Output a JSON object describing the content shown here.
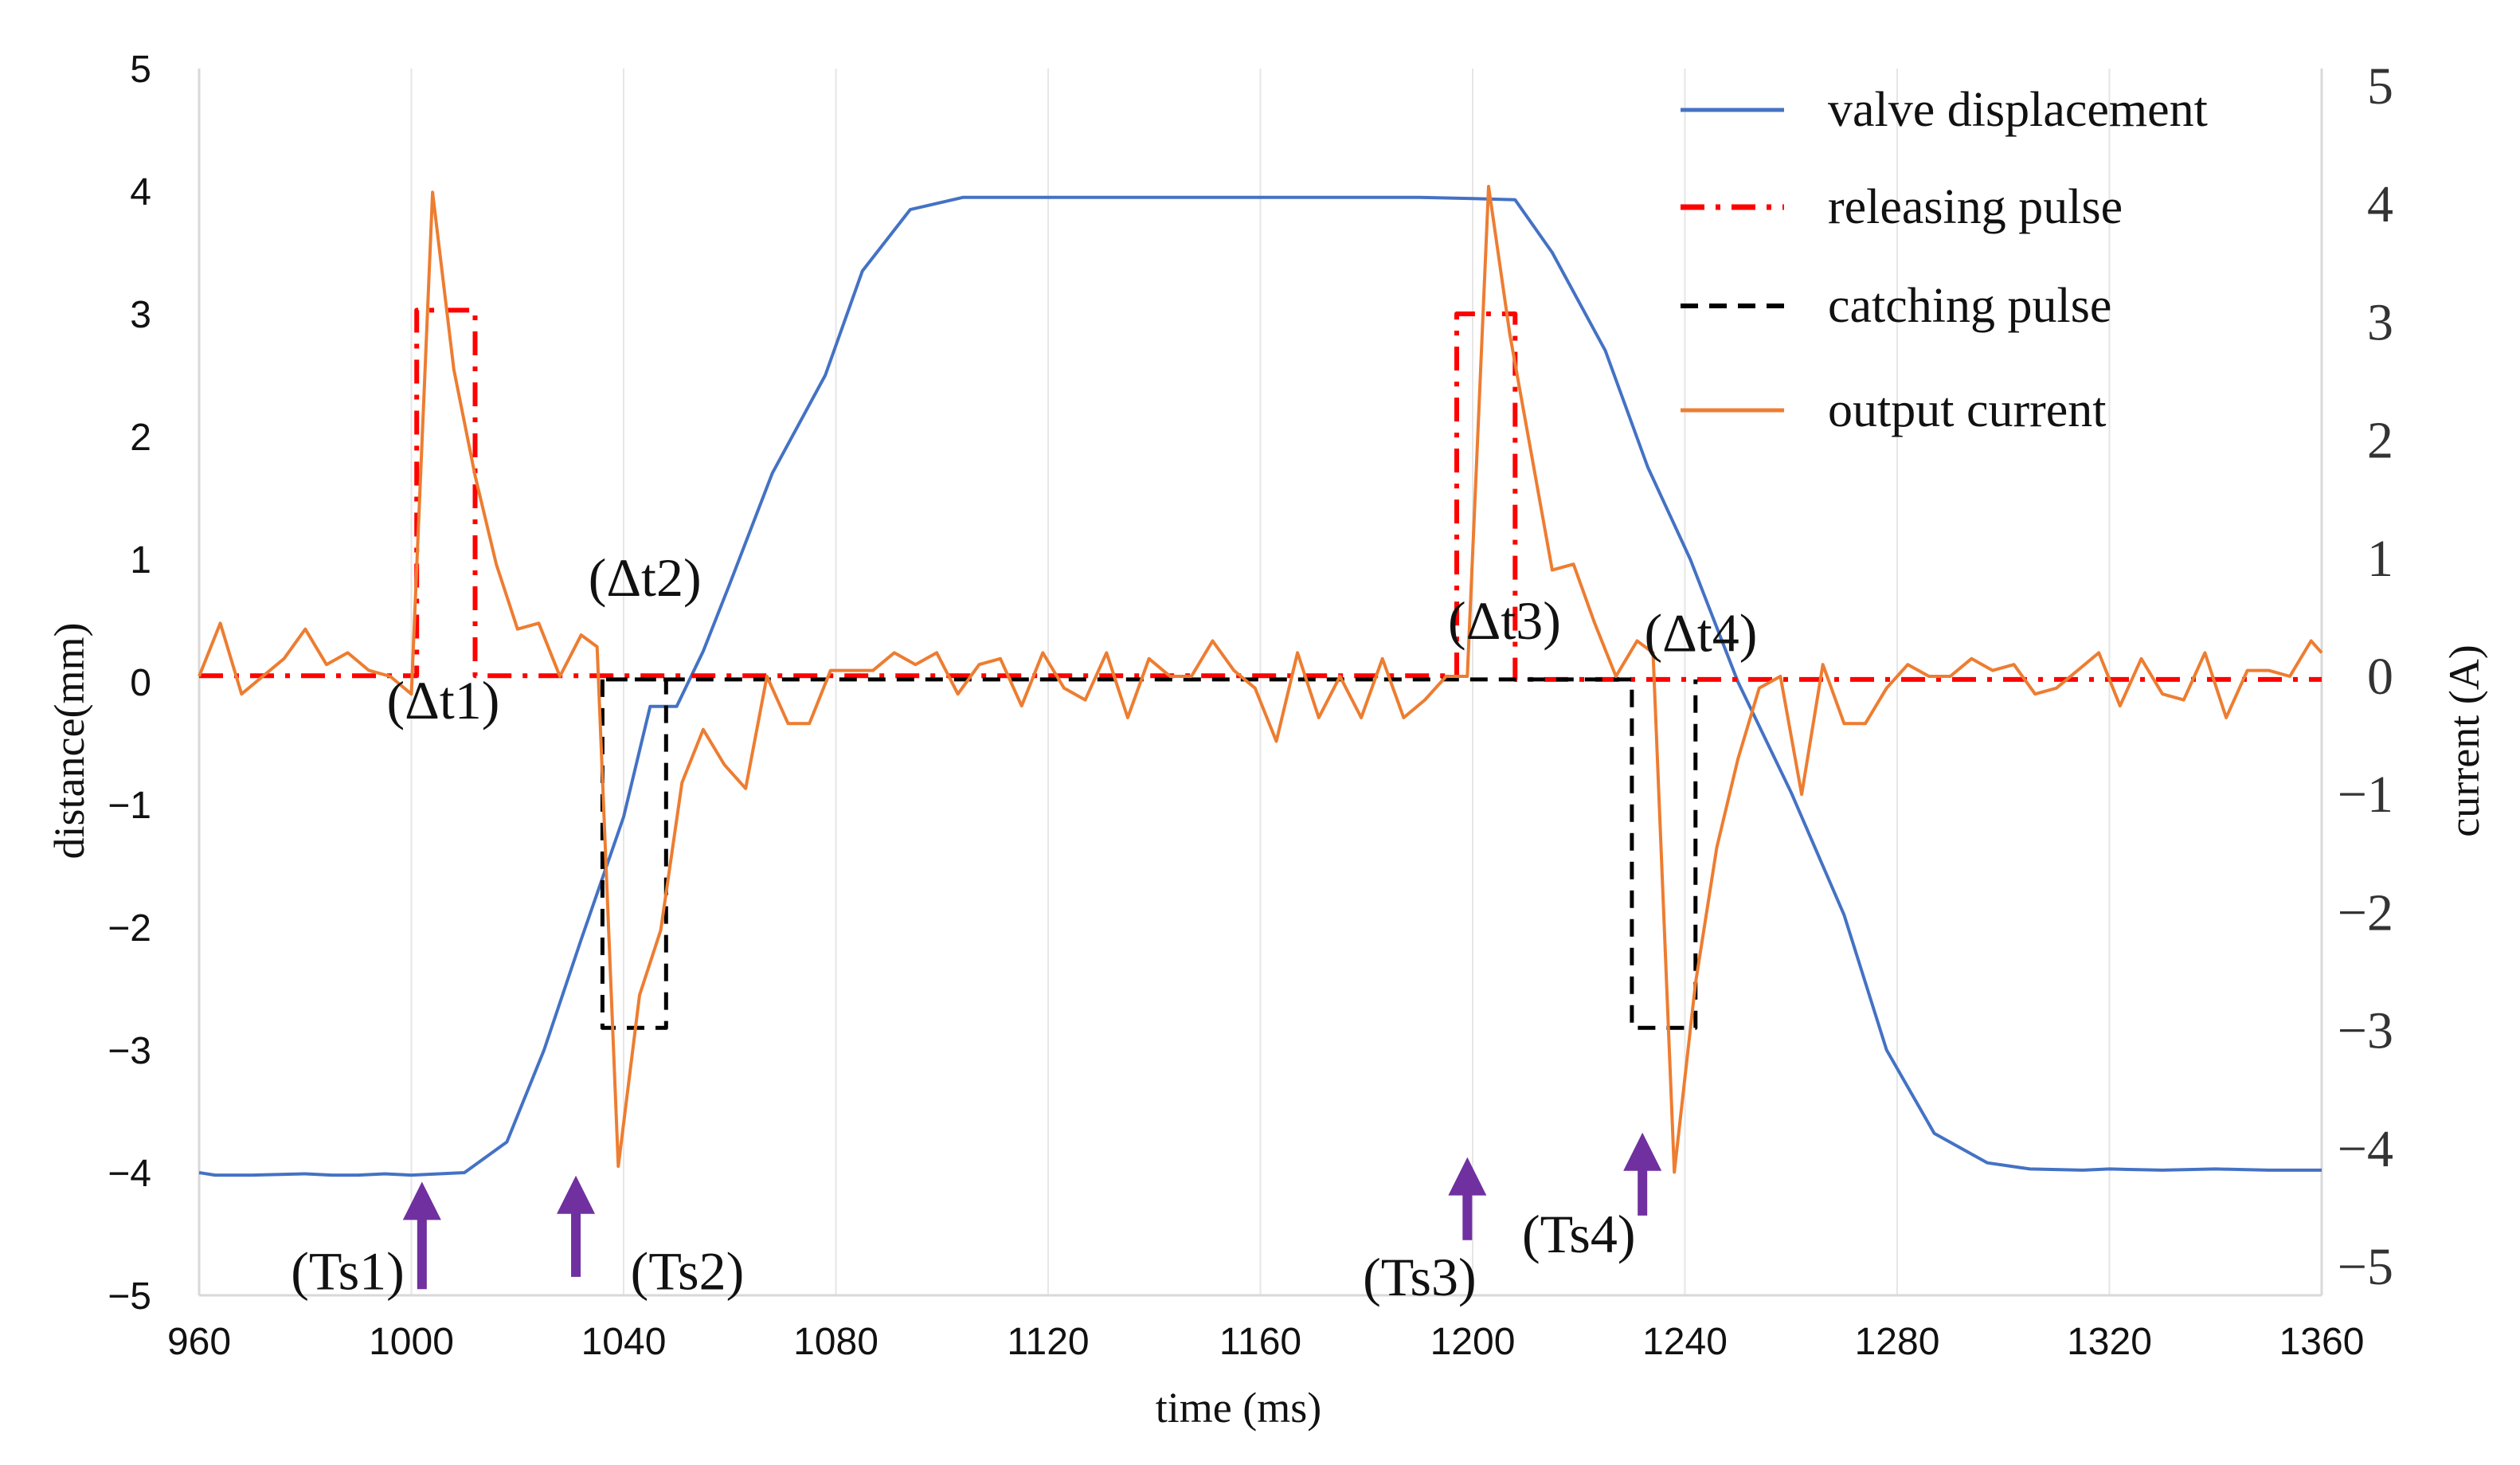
{
  "chart_data": {
    "type": "line",
    "xlabel": "time (ms)",
    "ylabel_left": "distance(mm)",
    "ylabel_right": "current (A)",
    "xlim": [
      960,
      1360
    ],
    "ylim_left": [
      -5,
      5
    ],
    "ylim_right": [
      -5,
      5
    ],
    "x_ticks": [
      960,
      1000,
      1040,
      1080,
      1120,
      1160,
      1200,
      1240,
      1280,
      1320,
      1360
    ],
    "y_ticks_left": [
      5,
      4,
      3,
      2,
      1,
      0,
      -1,
      -2,
      -3,
      -4,
      -5
    ],
    "y_ticks_right": [
      5,
      4,
      3,
      2,
      1,
      0,
      -1,
      -2,
      -3,
      -4,
      -5
    ],
    "x_tick_labels": [
      "960",
      "1000",
      "1040",
      "1080",
      "1120",
      "1160",
      "1200",
      "1240",
      "1280",
      "1320",
      "1360"
    ],
    "y_left_tick_labels": [
      "5",
      "4",
      "3",
      "2",
      "1",
      "0",
      "−1",
      "−2",
      "−3",
      "−4",
      "−5"
    ],
    "y_right_tick_labels": [
      "5",
      "4",
      "3",
      "2",
      "1",
      "0",
      "−1",
      "−2",
      "−3",
      "−4",
      "−5"
    ],
    "grid": "vertical",
    "legend_position": "top-right",
    "series": [
      {
        "name": "valve displacement",
        "axis": "left",
        "color": "#4472C4",
        "style": "solid",
        "points": [
          [
            960,
            -4
          ],
          [
            963,
            -4.02
          ],
          [
            970,
            -4.02
          ],
          [
            980,
            -4.01
          ],
          [
            985,
            -4.02
          ],
          [
            990,
            -4.02
          ],
          [
            995,
            -4.01
          ],
          [
            1000,
            -4.02
          ],
          [
            1010,
            -4
          ],
          [
            1018,
            -3.75
          ],
          [
            1025,
            -3
          ],
          [
            1032,
            -2.1
          ],
          [
            1040,
            -1.1
          ],
          [
            1045,
            -0.2
          ],
          [
            1050,
            -0.2
          ],
          [
            1055,
            0.25
          ],
          [
            1060,
            0.8
          ],
          [
            1068,
            1.7
          ],
          [
            1078,
            2.5
          ],
          [
            1085,
            3.35
          ],
          [
            1094,
            3.85
          ],
          [
            1104,
            3.95
          ],
          [
            1130,
            3.95
          ],
          [
            1160,
            3.95
          ],
          [
            1190,
            3.95
          ],
          [
            1200,
            3.94
          ],
          [
            1208,
            3.93
          ],
          [
            1215,
            3.5
          ],
          [
            1225,
            2.7
          ],
          [
            1233,
            1.75
          ],
          [
            1241,
            1.0
          ],
          [
            1250,
            0
          ],
          [
            1260,
            -0.9
          ],
          [
            1270,
            -1.9
          ],
          [
            1278,
            -3.0
          ],
          [
            1287,
            -3.68
          ],
          [
            1297,
            -3.92
          ],
          [
            1305,
            -3.97
          ],
          [
            1315,
            -3.98
          ],
          [
            1320,
            -3.97
          ],
          [
            1330,
            -3.98
          ],
          [
            1340,
            -3.97
          ],
          [
            1350,
            -3.98
          ],
          [
            1360,
            -3.98
          ]
        ]
      },
      {
        "name": "releasing pulse",
        "axis": "left",
        "color": "#FF0000",
        "style": "dashdot",
        "points": [
          [
            960,
            0.05
          ],
          [
            1001,
            0.05
          ],
          [
            1001,
            3.03
          ],
          [
            1012,
            3.03
          ],
          [
            1012,
            0.05
          ],
          [
            1197,
            0.05
          ],
          [
            1197,
            3.0
          ],
          [
            1208,
            3.0
          ],
          [
            1208,
            0.02
          ],
          [
            1360,
            0.02
          ]
        ]
      },
      {
        "name": "catching pulse",
        "axis": "left",
        "color": "#000000",
        "style": "dashed",
        "points": [
          [
            1036,
            0.02
          ],
          [
            1036,
            -2.82
          ],
          [
            1048,
            -2.82
          ],
          [
            1048,
            0.02
          ],
          [
            1036,
            0.02
          ],
          [
            1230,
            0.02
          ],
          [
            1230,
            -2.82
          ],
          [
            1242,
            -2.82
          ],
          [
            1242,
            0.02
          ]
        ]
      },
      {
        "name": "output current",
        "axis": "right",
        "color": "#ED7D31",
        "style": "solid",
        "points": [
          [
            960,
            0
          ],
          [
            964,
            0.45
          ],
          [
            968,
            -0.15
          ],
          [
            972,
            0
          ],
          [
            976,
            0.15
          ],
          [
            980,
            0.4
          ],
          [
            984,
            0.1
          ],
          [
            988,
            0.2
          ],
          [
            992,
            0.05
          ],
          [
            996,
            0
          ],
          [
            1000,
            -0.15
          ],
          [
            1004,
            4.1
          ],
          [
            1008,
            2.6
          ],
          [
            1012,
            1.7
          ],
          [
            1016,
            0.95
          ],
          [
            1020,
            0.4
          ],
          [
            1024,
            0.45
          ],
          [
            1028,
            0
          ],
          [
            1032,
            0.35
          ],
          [
            1035,
            0.25
          ],
          [
            1039,
            -4.15
          ],
          [
            1043,
            -2.7
          ],
          [
            1047,
            -2.15
          ],
          [
            1051,
            -0.9
          ],
          [
            1055,
            -0.45
          ],
          [
            1059,
            -0.75
          ],
          [
            1063,
            -0.95
          ],
          [
            1067,
            0
          ],
          [
            1071,
            -0.4
          ],
          [
            1075,
            -0.4
          ],
          [
            1079,
            0.05
          ],
          [
            1083,
            0.05
          ],
          [
            1087,
            0.05
          ],
          [
            1091,
            0.2
          ],
          [
            1095,
            0.1
          ],
          [
            1099,
            0.2
          ],
          [
            1103,
            -0.15
          ],
          [
            1107,
            0.1
          ],
          [
            1111,
            0.15
          ],
          [
            1115,
            -0.25
          ],
          [
            1119,
            0.2
          ],
          [
            1123,
            -0.1
          ],
          [
            1127,
            -0.2
          ],
          [
            1131,
            0.2
          ],
          [
            1135,
            -0.35
          ],
          [
            1139,
            0.15
          ],
          [
            1143,
            0
          ],
          [
            1147,
            0
          ],
          [
            1151,
            0.3
          ],
          [
            1155,
            0.05
          ],
          [
            1159,
            -0.1
          ],
          [
            1163,
            -0.55
          ],
          [
            1167,
            0.2
          ],
          [
            1171,
            -0.35
          ],
          [
            1175,
            0
          ],
          [
            1179,
            -0.35
          ],
          [
            1183,
            0.15
          ],
          [
            1187,
            -0.35
          ],
          [
            1191,
            -0.2
          ],
          [
            1195,
            0
          ],
          [
            1199,
            0
          ],
          [
            1203,
            4.15
          ],
          [
            1207,
            2.9
          ],
          [
            1211,
            1.9
          ],
          [
            1215,
            0.9
          ],
          [
            1219,
            0.95
          ],
          [
            1223,
            0.45
          ],
          [
            1227,
            0
          ],
          [
            1231,
            0.3
          ],
          [
            1234,
            0.2
          ],
          [
            1238,
            -4.2
          ],
          [
            1242,
            -2.6
          ],
          [
            1246,
            -1.45
          ],
          [
            1250,
            -0.7
          ],
          [
            1254,
            -0.1
          ],
          [
            1258,
            0
          ],
          [
            1262,
            -1.0
          ],
          [
            1266,
            0.1
          ],
          [
            1270,
            -0.4
          ],
          [
            1274,
            -0.4
          ],
          [
            1278,
            -0.1
          ],
          [
            1282,
            0.1
          ],
          [
            1286,
            0
          ],
          [
            1290,
            0
          ],
          [
            1294,
            0.15
          ],
          [
            1298,
            0.05
          ],
          [
            1302,
            0.1
          ],
          [
            1306,
            -0.15
          ],
          [
            1310,
            -0.1
          ],
          [
            1314,
            0.05
          ],
          [
            1318,
            0.2
          ],
          [
            1322,
            -0.25
          ],
          [
            1326,
            0.15
          ],
          [
            1330,
            -0.15
          ],
          [
            1334,
            -0.2
          ],
          [
            1338,
            0.2
          ],
          [
            1342,
            -0.35
          ],
          [
            1346,
            0.05
          ],
          [
            1350,
            0.05
          ],
          [
            1354,
            0
          ],
          [
            1358,
            0.3
          ],
          [
            1360,
            0.2
          ]
        ]
      }
    ],
    "annotations": [
      {
        "label": "(Δt1)",
        "x": 1006,
        "y": -0.3
      },
      {
        "label": "(Δt2)",
        "x": 1044,
        "y": 0.7
      },
      {
        "label": "(Δt3)",
        "x": 1206,
        "y": 0.35
      },
      {
        "label": "(Δt4)",
        "x": 1243,
        "y": 0.25
      },
      {
        "label": "(Ts1)",
        "x": 988,
        "y": -4.95
      },
      {
        "label": "(Ts2)",
        "x": 1052,
        "y": -4.95
      },
      {
        "label": "(Ts3)",
        "x": 1190,
        "y": -5.0
      },
      {
        "label": "(Ts4)",
        "x": 1220,
        "y": -4.65
      }
    ],
    "arrows": [
      {
        "x": 1002,
        "y_from": -4.95,
        "y_to": -4.1
      },
      {
        "x": 1031,
        "y_from": -4.85,
        "y_to": -4.05
      },
      {
        "x": 1199,
        "y_from": -4.55,
        "y_to": -3.9
      },
      {
        "x": 1232,
        "y_from": -4.35,
        "y_to": -3.7
      }
    ],
    "arrow_color": "#7030A0"
  }
}
